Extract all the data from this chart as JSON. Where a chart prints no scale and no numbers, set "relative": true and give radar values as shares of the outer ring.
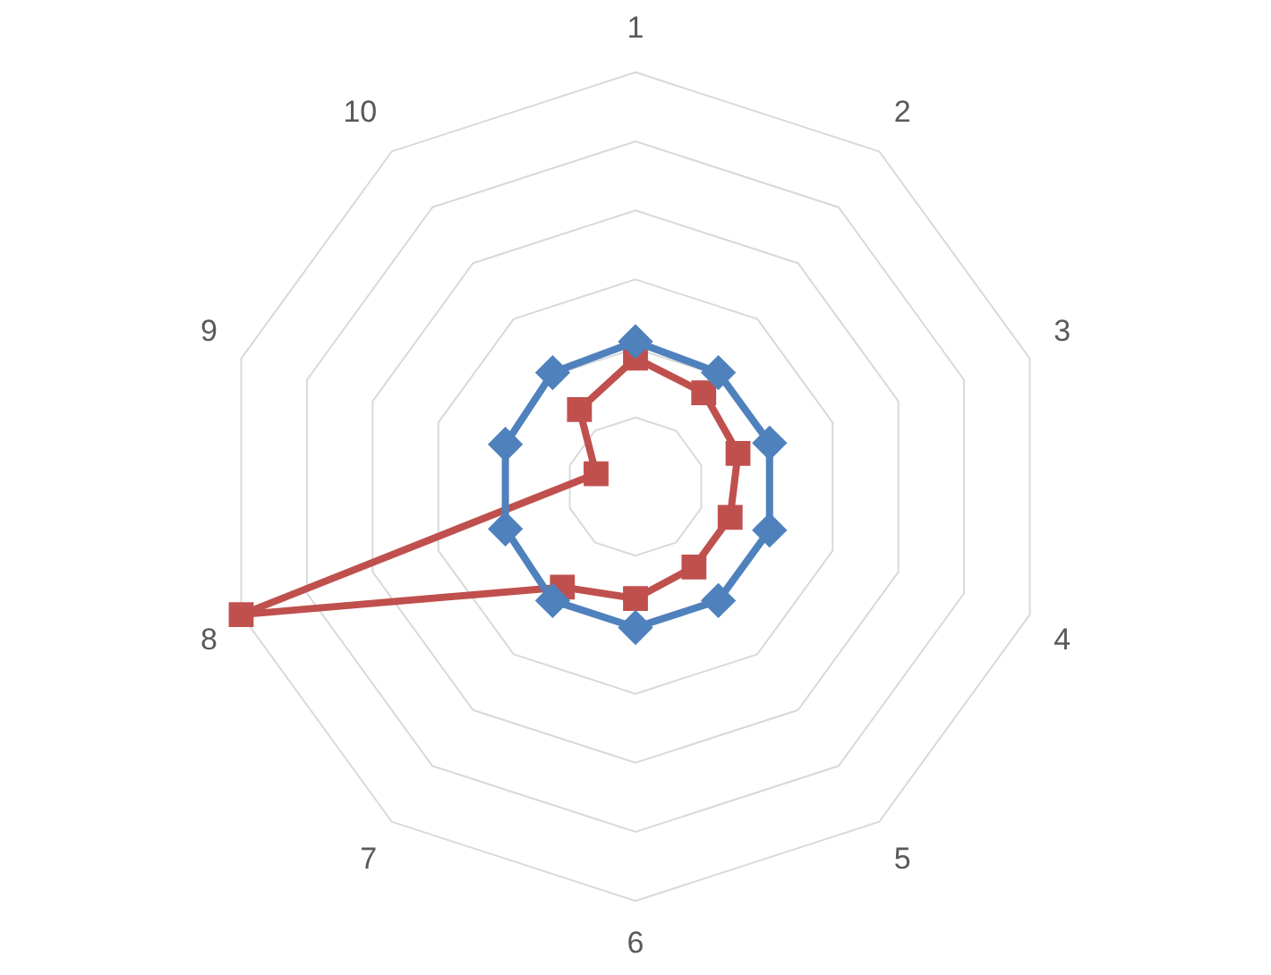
{
  "chart_data": {
    "type": "radar",
    "relative": true,
    "grid": true,
    "legend": false,
    "categories": [
      "1",
      "2",
      "3",
      "4",
      "5",
      "6",
      "7",
      "8",
      "9",
      "10"
    ],
    "series": [
      {
        "color": "#4f81bd",
        "marker": "diamond",
        "values": [
          0.35,
          0.34,
          0.34,
          0.34,
          0.34,
          0.34,
          0.34,
          0.33,
          0.33,
          0.34
        ]
      },
      {
        "color": "#c0504d",
        "marker": "square",
        "values": [
          0.31,
          0.28,
          0.26,
          0.24,
          0.24,
          0.27,
          0.3,
          1,
          0.1,
          0.23
        ]
      }
    ]
  }
}
